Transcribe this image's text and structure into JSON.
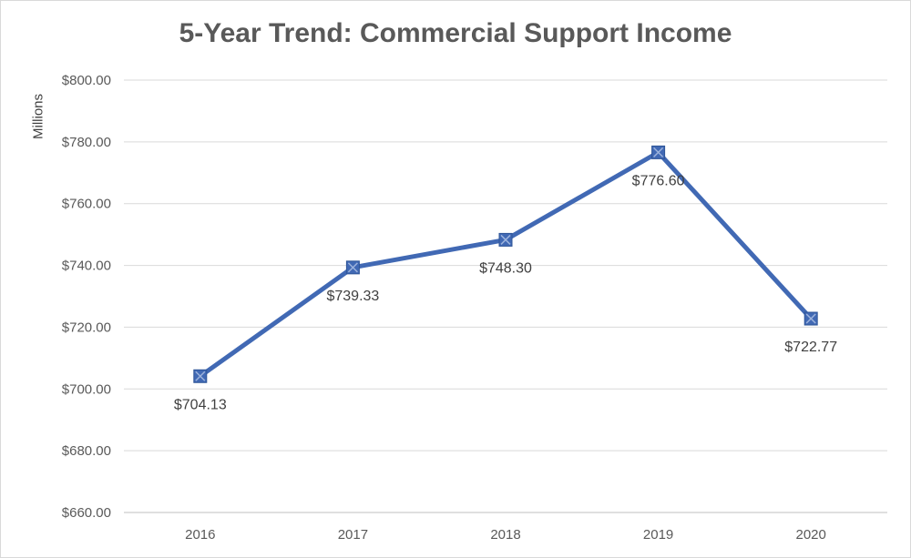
{
  "chart_data": {
    "type": "line",
    "title": "5-Year Trend: Commercial Support Income",
    "xlabel": "",
    "ylabel": "Millions",
    "categories": [
      "2016",
      "2017",
      "2018",
      "2019",
      "2020"
    ],
    "series": [
      {
        "values": [
          704.13,
          739.33,
          748.3,
          776.6,
          722.77
        ],
        "data_labels": [
          "$704.13",
          "$739.33",
          "$748.30",
          "$776.60",
          "$722.77"
        ]
      }
    ],
    "ylim": [
      660,
      800
    ],
    "y_ticks": [
      660,
      680,
      700,
      720,
      740,
      760,
      780,
      800
    ],
    "y_tick_labels": [
      "$660.00",
      "$680.00",
      "$700.00",
      "$720.00",
      "$740.00",
      "$760.00",
      "$780.00",
      "$800.00"
    ],
    "grid": true,
    "legend": "none",
    "line_color": "#4169b4",
    "marker": "square-with-x"
  }
}
